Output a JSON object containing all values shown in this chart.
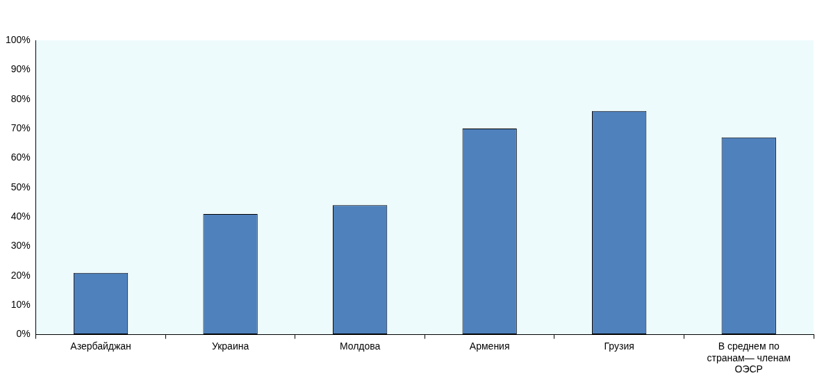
{
  "chart_data": {
    "type": "bar",
    "categories": [
      "Азербайджан",
      "Украина",
      "Молдова",
      "Армения",
      "Грузия",
      "В среднем по странам— членам ОЭСР"
    ],
    "values": [
      21,
      41,
      44,
      70,
      76,
      67
    ],
    "color": "#4f81bd",
    "ylim": [
      0,
      100
    ],
    "yticks": [
      {
        "value": 0,
        "label": "0%"
      },
      {
        "value": 10,
        "label": "10%"
      },
      {
        "value": 20,
        "label": "20%"
      },
      {
        "value": 30,
        "label": "30%"
      },
      {
        "value": 40,
        "label": "40%"
      },
      {
        "value": 50,
        "label": "50%"
      },
      {
        "value": 60,
        "label": "60%"
      },
      {
        "value": 70,
        "label": "70%"
      },
      {
        "value": 80,
        "label": "80%"
      },
      {
        "value": 90,
        "label": "90%"
      },
      {
        "value": 100,
        "label": "100%"
      }
    ],
    "grid": false,
    "legend": false
  }
}
